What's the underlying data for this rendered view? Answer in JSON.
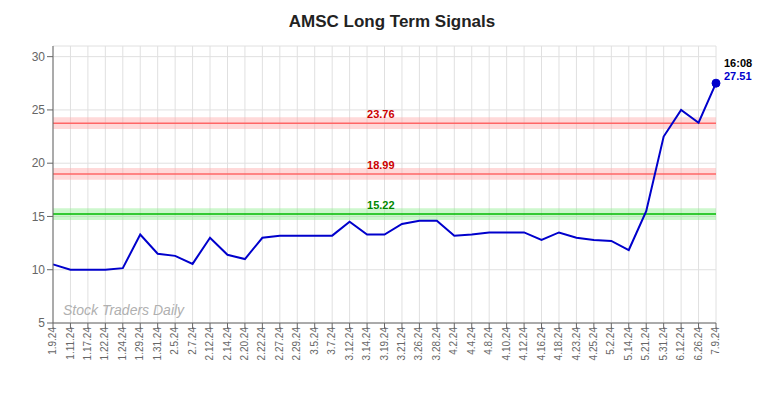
{
  "chart_data": {
    "type": "line",
    "title": "AMSC Long Term Signals",
    "categories": [
      "1.9.24",
      "1.11.24",
      "1.17.24",
      "1.22.24",
      "1.24.24",
      "1.29.24",
      "1.31.24",
      "2.5.24",
      "2.7.24",
      "2.12.24",
      "2.14.24",
      "2.20.24",
      "2.22.24",
      "2.27.24",
      "2.29.24",
      "3.5.24",
      "3.7.24",
      "3.12.24",
      "3.14.24",
      "3.19.24",
      "3.21.24",
      "3.26.24",
      "3.28.24",
      "4.2.24",
      "4.4.24",
      "4.8.24",
      "4.10.24",
      "4.12.24",
      "4.16.24",
      "4.18.24",
      "4.23.24",
      "4.25.24",
      "5.2.24",
      "5.14.24",
      "5.21.24",
      "5.31.24",
      "6.12.24",
      "6.26.24",
      "7.9.24"
    ],
    "values": [
      10.5,
      10.0,
      10.0,
      10.0,
      10.15,
      13.3,
      11.5,
      11.3,
      10.55,
      13.0,
      11.4,
      11.0,
      13.0,
      13.2,
      13.2,
      13.2,
      13.2,
      14.5,
      13.3,
      13.3,
      14.3,
      14.6,
      14.6,
      13.2,
      13.3,
      13.5,
      13.5,
      13.5,
      12.8,
      13.5,
      13.0,
      12.8,
      12.7,
      11.85,
      15.5,
      22.5,
      25.0,
      23.8,
      27.51
    ],
    "color": "#0000cc",
    "ylim": [
      5,
      31
    ],
    "yticks": [
      5,
      10,
      15,
      20,
      25,
      30
    ],
    "grid": true,
    "hlines": [
      {
        "value": 15.22,
        "label": "15.22",
        "color": "#00bb00",
        "label_color": "#008800",
        "band_color": "#90ee90",
        "band": 0.55
      },
      {
        "value": 18.99,
        "label": "18.99",
        "color": "#ff6666",
        "label_color": "#cc0000",
        "band_color": "#ffaaaa",
        "band": 0.55
      },
      {
        "value": 23.76,
        "label": "23.76",
        "color": "#ff6666",
        "label_color": "#cc0000",
        "band_color": "#ffaaaa",
        "band": 0.55
      }
    ],
    "annotation_at": "3.14.24",
    "watermark": "Stock Traders Daily",
    "last_labels": [
      "16:08",
      "27.51"
    ]
  }
}
